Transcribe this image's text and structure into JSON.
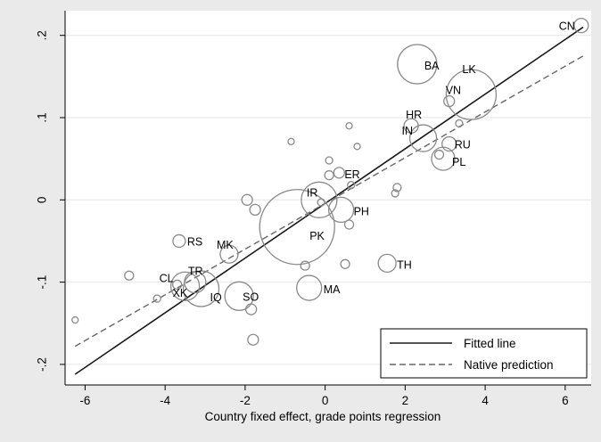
{
  "chart_data": {
    "type": "scatter",
    "title": "",
    "xlabel": "Country fixed effect, grade points regression",
    "ylabel": "",
    "xlim": [
      -6.5,
      6.65
    ],
    "ylim": [
      -0.225,
      0.23
    ],
    "x_ticks": [
      -6,
      -4,
      -2,
      0,
      2,
      4,
      6
    ],
    "y_ticks": [
      -0.2,
      -0.1,
      0,
      0.1,
      0.2
    ],
    "x_tick_labels": [
      "-6",
      "-4",
      "-2",
      "0",
      "2",
      "4",
      "6"
    ],
    "y_tick_labels": [
      "-.2",
      "-.1",
      "0",
      ".1",
      ".2"
    ],
    "grid": "horizontal",
    "legend_position": "bottom-right",
    "colors": {
      "points": "#8a8a8a",
      "fitted_line": "#1a1a1a",
      "native_line": "#666666",
      "plot_bg": "#ffffff",
      "outer_bg": "#eaeaea"
    },
    "series": [
      {
        "name": "Fitted line",
        "style": "solid",
        "x": [
          -6.25,
          6.45
        ],
        "y": [
          -0.212,
          0.21
        ]
      },
      {
        "name": "Native prediction",
        "style": "dashed",
        "x": [
          -6.25,
          6.45
        ],
        "y": [
          -0.178,
          0.175
        ]
      }
    ],
    "points": [
      {
        "label": "CN",
        "x": 6.4,
        "y": 0.212,
        "size": 8
      },
      {
        "label": "BA",
        "x": 2.3,
        "y": 0.165,
        "size": 22
      },
      {
        "label": "LK",
        "x": 3.65,
        "y": 0.128,
        "size": 28
      },
      {
        "label": "VN",
        "x": 3.1,
        "y": 0.12,
        "size": 6
      },
      {
        "label": "HR",
        "x": 2.15,
        "y": 0.09,
        "size": 8
      },
      {
        "label": "IN",
        "x": 2.45,
        "y": 0.075,
        "size": 15
      },
      {
        "label": "RU",
        "x": 3.1,
        "y": 0.068,
        "size": 8
      },
      {
        "label": "PL",
        "x": 2.95,
        "y": 0.05,
        "size": 13
      },
      {
        "label": "ER",
        "x": 0.35,
        "y": 0.033,
        "size": 6
      },
      {
        "label": "IR",
        "x": -0.15,
        "y": 0.0,
        "size": 20
      },
      {
        "label": "PH",
        "x": 0.4,
        "y": -0.012,
        "size": 14
      },
      {
        "label": "PK",
        "x": -0.7,
        "y": -0.033,
        "size": 42
      },
      {
        "label": "RS",
        "x": -3.65,
        "y": -0.05,
        "size": 7
      },
      {
        "label": "MK",
        "x": -2.4,
        "y": -0.066,
        "size": 10
      },
      {
        "label": "TH",
        "x": 1.55,
        "y": -0.077,
        "size": 10
      },
      {
        "label": "TR",
        "x": -3.25,
        "y": -0.1,
        "size": 12
      },
      {
        "label": "CL",
        "x": -3.7,
        "y": -0.103,
        "size": 5
      },
      {
        "label": "XK",
        "x": -3.5,
        "y": -0.105,
        "size": 16
      },
      {
        "label": "IQ",
        "x": -3.1,
        "y": -0.108,
        "size": 20
      },
      {
        "label": "MA",
        "x": -0.4,
        "y": -0.107,
        "size": 14
      },
      {
        "label": "SO",
        "x": -2.15,
        "y": -0.117,
        "size": 16
      },
      {
        "label": "",
        "x": 0.6,
        "y": 0.09,
        "size": 3.5
      },
      {
        "label": "",
        "x": -0.85,
        "y": 0.071,
        "size": 3.5
      },
      {
        "label": "",
        "x": 0.8,
        "y": 0.065,
        "size": 3.5
      },
      {
        "label": "",
        "x": 0.1,
        "y": 0.048,
        "size": 4
      },
      {
        "label": "",
        "x": 0.1,
        "y": 0.03,
        "size": 5
      },
      {
        "label": "",
        "x": 1.8,
        "y": 0.015,
        "size": 4.5
      },
      {
        "label": "",
        "x": 1.75,
        "y": 0.008,
        "size": 4
      },
      {
        "label": "",
        "x": 0.65,
        "y": 0.018,
        "size": 4
      },
      {
        "label": "",
        "x": -1.95,
        "y": 0.0,
        "size": 6
      },
      {
        "label": "",
        "x": -1.75,
        "y": -0.012,
        "size": 6
      },
      {
        "label": "",
        "x": -0.1,
        "y": -0.003,
        "size": 4
      },
      {
        "label": "",
        "x": 0.6,
        "y": -0.03,
        "size": 5
      },
      {
        "label": "",
        "x": 0.5,
        "y": -0.078,
        "size": 5
      },
      {
        "label": "",
        "x": -0.5,
        "y": -0.08,
        "size": 5
      },
      {
        "label": "",
        "x": -4.9,
        "y": -0.092,
        "size": 5
      },
      {
        "label": "",
        "x": -4.2,
        "y": -0.12,
        "size": 4
      },
      {
        "label": "",
        "x": -1.85,
        "y": -0.133,
        "size": 6
      },
      {
        "label": "",
        "x": -1.8,
        "y": -0.17,
        "size": 6
      },
      {
        "label": "",
        "x": -6.25,
        "y": -0.146,
        "size": 3.5
      },
      {
        "label": "",
        "x": 3.35,
        "y": 0.093,
        "size": 4
      },
      {
        "label": "",
        "x": 2.85,
        "y": 0.055,
        "size": 5
      }
    ]
  }
}
